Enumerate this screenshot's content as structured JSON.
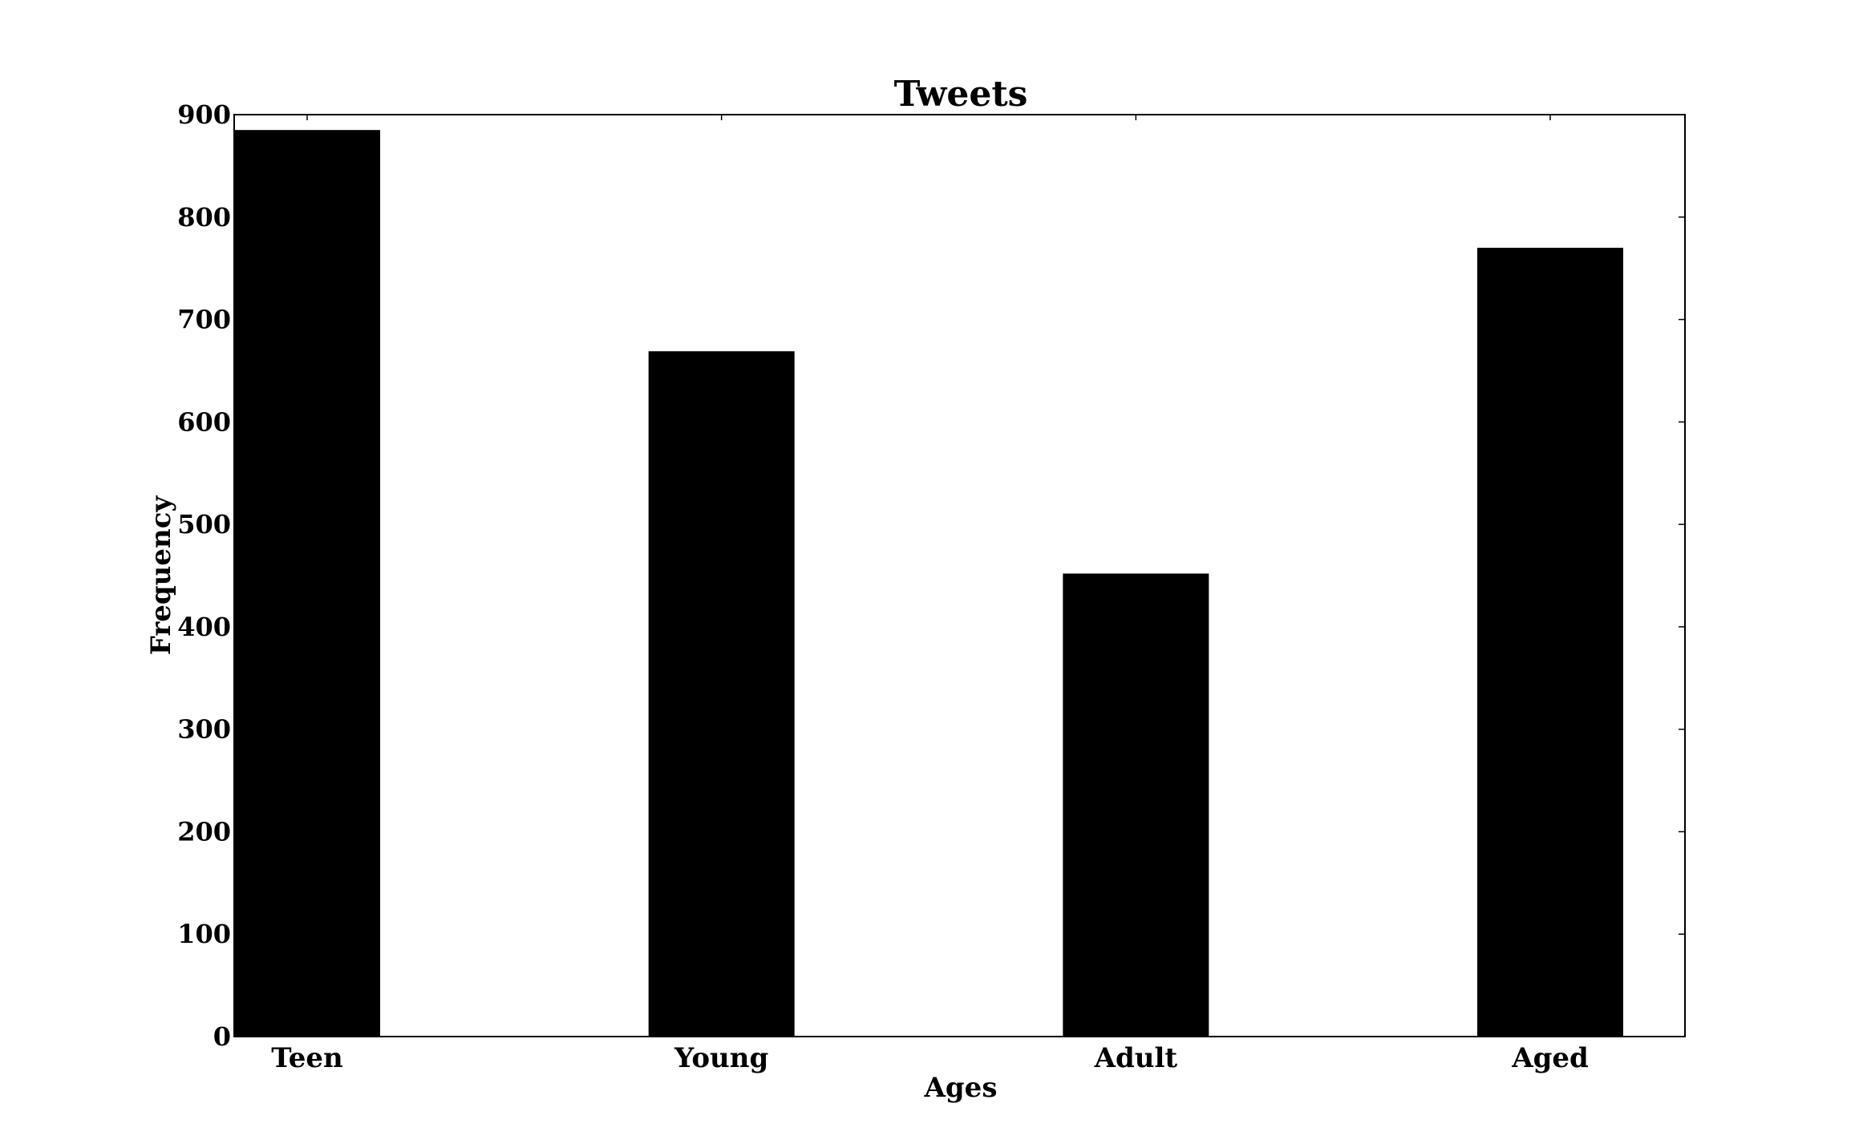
{
  "chart_data": {
    "type": "bar",
    "title": "Tweets",
    "xlabel": "Ages",
    "ylabel": "Frequency",
    "categories": [
      "Teen",
      "Young",
      "Adult",
      "Aged"
    ],
    "values": [
      885,
      669,
      452,
      770
    ],
    "ylim": [
      0,
      900
    ],
    "yticks": [
      "0",
      "100",
      "200",
      "300",
      "400",
      "500",
      "600",
      "700",
      "800",
      "900"
    ],
    "grid": false,
    "legend": "none",
    "bar_color": "#000000"
  }
}
